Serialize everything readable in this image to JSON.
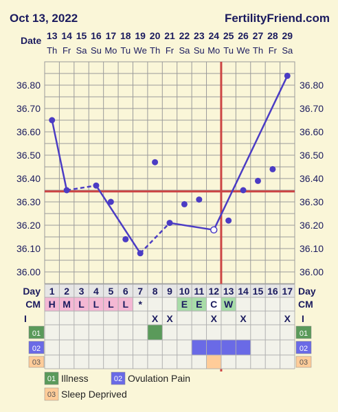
{
  "header": {
    "date": "Oct 13, 2022",
    "site": "FertilityFriend.com"
  },
  "chart_data": {
    "type": "line",
    "date_label": "Date",
    "day_label": "Day",
    "x_dates": [
      "13",
      "14",
      "15",
      "16",
      "17",
      "18",
      "19",
      "20",
      "21",
      "22",
      "23",
      "24",
      "25",
      "26",
      "27",
      "28",
      "29"
    ],
    "x_weekdays": [
      "Th",
      "Fr",
      "Sa",
      "Su",
      "Mo",
      "Tu",
      "We",
      "Th",
      "Fr",
      "Sa",
      "Su",
      "Mo",
      "Tu",
      "We",
      "Th",
      "Fr",
      "Sa"
    ],
    "cycle_days": [
      "1",
      "2",
      "3",
      "4",
      "5",
      "6",
      "7",
      "8",
      "9",
      "10",
      "11",
      "12",
      "13",
      "14",
      "15",
      "16",
      "17"
    ],
    "y_ticks": [
      "36.00",
      "36.10",
      "36.20",
      "36.30",
      "36.40",
      "36.50",
      "36.60",
      "36.70",
      "36.80"
    ],
    "ylim": [
      35.95,
      36.9
    ],
    "temperatures": [
      36.65,
      36.35,
      null,
      36.37,
      36.3,
      36.14,
      36.08,
      36.47,
      36.21,
      36.29,
      36.31,
      36.18,
      36.22,
      36.35,
      36.39,
      36.44,
      36.84
    ],
    "segments": [
      {
        "from": 1,
        "to": 2,
        "style": "solid"
      },
      {
        "from": 2,
        "to": 4,
        "style": "dashed"
      },
      {
        "from": 4,
        "to": 7,
        "style": "solid"
      },
      {
        "from": 7,
        "to": 9,
        "style": "dashed"
      },
      {
        "from": 9,
        "to": 12,
        "style": "solid"
      },
      {
        "from": 12,
        "to": 17,
        "style": "solid"
      }
    ],
    "unconnected_points": [
      8
    ],
    "open_points": [
      12
    ],
    "coverline": 36.345,
    "ovulation_day": 13,
    "colors": {
      "line": "#4b3cc4",
      "marker": "#cc4444",
      "grid": "#9a9a9a",
      "plot_bg": "#faf6d8"
    },
    "rows": {
      "cm": {
        "label": "CM",
        "values": [
          "H",
          "M",
          "L",
          "L",
          "L",
          "L",
          "*",
          "",
          "",
          "E",
          "E",
          "C",
          "W",
          "",
          "",
          "",
          ""
        ],
        "colors": [
          "#f4b8d4",
          "#f4b8d4",
          "#f4b8d4",
          "#f4b8d4",
          "#f4b8d4",
          "#f4b8d4",
          "",
          "",
          "",
          "#a8dca8",
          "#a8dca8",
          "#ffffff",
          "#a8dca8",
          "",
          "",
          "",
          ""
        ]
      },
      "intercourse": {
        "label": "I",
        "values": [
          "",
          "",
          "",
          "",
          "",
          "",
          "",
          "X",
          "X",
          "",
          "",
          "X",
          "",
          "X",
          "",
          "",
          "X"
        ]
      },
      "custom": [
        {
          "code": "01",
          "name": "Illness",
          "color": "#5a9a5a",
          "days": [
            8
          ]
        },
        {
          "code": "02",
          "name": "Ovulation Pain",
          "color": "#6a6ae6",
          "days": [
            11,
            12,
            13,
            14
          ]
        },
        {
          "code": "03",
          "name": "Sleep Deprived",
          "color": "#ffcc99",
          "days": [
            12
          ]
        }
      ]
    }
  }
}
